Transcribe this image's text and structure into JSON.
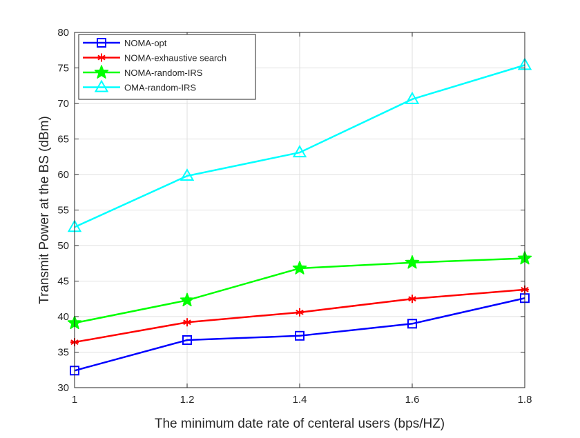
{
  "chart_data": {
    "type": "line",
    "title": "",
    "xlabel": "The minimum date rate of centeral users (bps/HZ)",
    "ylabel": "Transmit Power at the BS (dBm)",
    "xlim": [
      1,
      1.8
    ],
    "ylim": [
      30,
      80
    ],
    "xticks": [
      1,
      1.2,
      1.4,
      1.6,
      1.8
    ],
    "xtick_labels": [
      "1",
      "1.2",
      "1.4",
      "1.6",
      "1.8"
    ],
    "yticks": [
      30,
      35,
      40,
      45,
      50,
      55,
      60,
      65,
      70,
      75,
      80
    ],
    "ytick_labels": [
      "30",
      "35",
      "40",
      "45",
      "50",
      "55",
      "60",
      "65",
      "70",
      "75",
      "80"
    ],
    "grid": true,
    "legend_position": "top-left",
    "x": [
      1,
      1.2,
      1.4,
      1.6,
      1.8
    ],
    "series": [
      {
        "name": "NOMA-opt",
        "values": [
          32.4,
          36.7,
          37.3,
          39.0,
          42.6
        ],
        "color": "#0000ff",
        "marker": "square"
      },
      {
        "name": "NOMA-exhaustive search",
        "values": [
          36.4,
          39.2,
          40.6,
          42.5,
          43.8
        ],
        "color": "#ff0000",
        "marker": "asterisk"
      },
      {
        "name": "NOMA-random-IRS",
        "values": [
          39.1,
          42.3,
          46.8,
          47.6,
          48.2
        ],
        "color": "#00ff00",
        "marker": "star"
      },
      {
        "name": "OMA-random-IRS",
        "values": [
          52.6,
          59.8,
          63.1,
          70.6,
          75.4
        ],
        "color": "#00ffff",
        "marker": "triangle"
      }
    ]
  }
}
